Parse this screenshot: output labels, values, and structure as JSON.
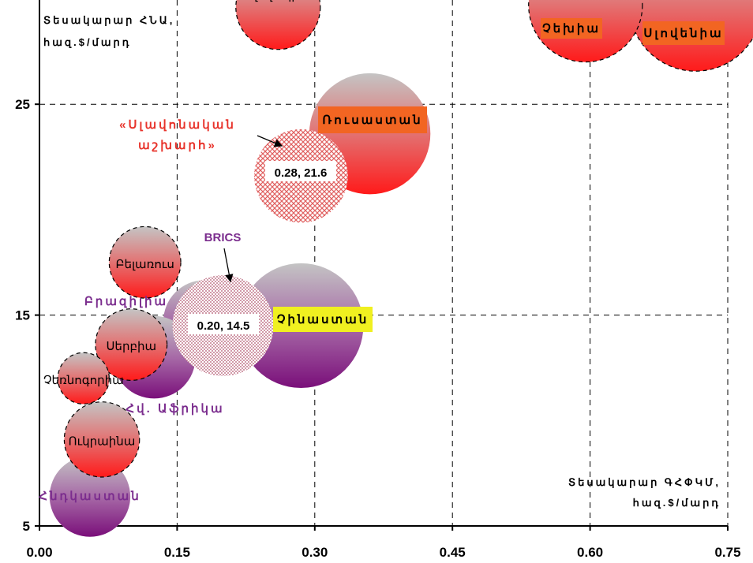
{
  "chart_data": {
    "type": "bubble",
    "x_axis_label": "Տեսակարար ԳՀՓԿՄ, հազ.$/մարդ",
    "y_axis_label": "Տեսակարար ՀՆԱ, հազ.$/մարդ",
    "xlim": [
      0.0,
      0.75
    ],
    "ylim": [
      5,
      30
    ],
    "xticks": [
      "0.00",
      "0.15",
      "0.30",
      "0.45",
      "0.60",
      "0.75"
    ],
    "yticks": [
      "5",
      "15",
      "25"
    ],
    "xtick_values": [
      0.0,
      0.15,
      0.3,
      0.45,
      0.6,
      0.75
    ],
    "ytick_values": [
      5,
      15,
      25
    ],
    "grid": true,
    "points": [
      {
        "label": "Սլովակիա",
        "x": 0.26,
        "y": 29.6,
        "size": 0.046,
        "style": "red-dashed"
      },
      {
        "label": "Չեխիա",
        "x": 0.595,
        "y": 29.7,
        "size": 0.062,
        "style": "red-dashed"
      },
      {
        "label": "Սլովենիա",
        "x": 0.715,
        "y": 29.7,
        "size": 0.072,
        "style": "red-dashed"
      },
      {
        "label": "Ռուսաստան",
        "x": 0.36,
        "y": 23.6,
        "size": 0.066,
        "style": "red"
      },
      {
        "label": "«Սլավոնական աշխարհ»",
        "value_label": "0.28, 21.6",
        "x": 0.285,
        "y": 21.6,
        "size": 0.051,
        "style": "red-hatched"
      },
      {
        "label": "Բելառուս",
        "x": 0.115,
        "y": 17.5,
        "size": 0.039,
        "style": "red-dashed"
      },
      {
        "label": "Բրազիլիա",
        "x": 0.18,
        "y": 14.7,
        "size": 0.045,
        "style": "purple"
      },
      {
        "label": "BRICS",
        "value_label": "0.20, 14.5",
        "x": 0.2,
        "y": 14.5,
        "size": 0.055,
        "style": "purple-dotted"
      },
      {
        "label": "Չինաստան",
        "x": 0.285,
        "y": 14.5,
        "size": 0.068,
        "style": "purple"
      },
      {
        "label": "Հվ. Աֆրիկա",
        "x": 0.125,
        "y": 13.0,
        "size": 0.045,
        "style": "purple"
      },
      {
        "label": "Սերբիա",
        "x": 0.1,
        "y": 13.6,
        "size": 0.039,
        "style": "red-dashed"
      },
      {
        "label": "Չեռնոգորիա",
        "x": 0.048,
        "y": 12.0,
        "size": 0.028,
        "style": "red-dashed"
      },
      {
        "label": "Ուկրաինա",
        "x": 0.068,
        "y": 9.1,
        "size": 0.041,
        "style": "red-dashed"
      },
      {
        "label": "Հնդկաստան",
        "x": 0.055,
        "y": 6.4,
        "size": 0.044,
        "style": "purple"
      }
    ]
  },
  "colors": {
    "red": "#ff0000",
    "purple": "#800080",
    "gray": "#c0c0c0",
    "orange_box": "#f26522",
    "yellow_box": "#f0f020",
    "label_red": "#e8332b",
    "label_purple": "#7b2d8e"
  }
}
